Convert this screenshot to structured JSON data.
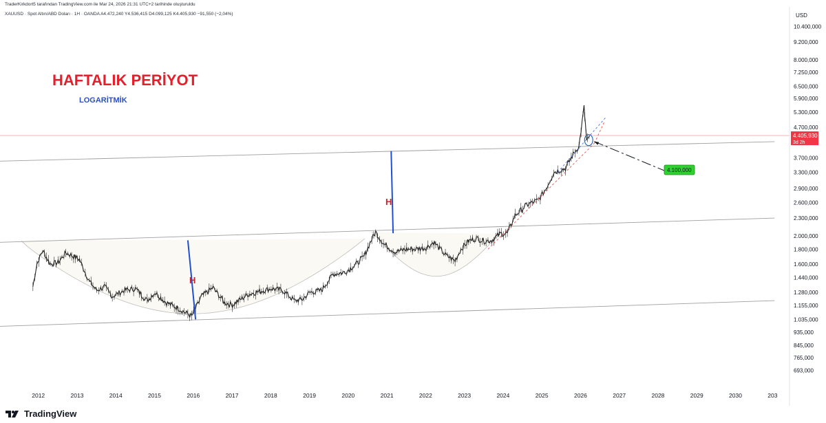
{
  "header": {
    "attribution": "TraderKirkdort5 tarafından TradingView.com ile Mar 24, 2026 21:31 UTC+2 tarihinde oluşturuldu",
    "symbol_line": "XAUUSD · Spot Altın/ABD Doları · 1H · OANDA   A4.472,240  Y4.536,415  D4.099,125  K4.405,930  −91,550 (−2,04%)"
  },
  "footer": {
    "brand": "TradingView"
  },
  "colors": {
    "title_red": "#e3202b",
    "subtitle_blue": "#2a4fbf",
    "measure_blue": "#1f4fd6",
    "badge_green": "#2fd12f",
    "price_red": "#f23645",
    "candle": "#222222"
  },
  "chart_data": {
    "type": "line",
    "title": "HAFTALIK PERİYOT",
    "subtitle": "LOGARİTMİK",
    "scale": "log",
    "y_unit": "USD",
    "x_ticks": [
      "2012",
      "2013",
      "2014",
      "2015",
      "2016",
      "2017",
      "2018",
      "2019",
      "2020",
      "2021",
      "2022",
      "2023",
      "2024",
      "2025",
      "2026",
      "2027",
      "2028",
      "2029",
      "2030",
      "203"
    ],
    "y_ticks": [
      "10.400,000",
      "9.200,000",
      "8.000,000",
      "7.250,000",
      "6.500,000",
      "5.900,000",
      "5.300,000",
      "4.700,000",
      "3.700,000",
      "3.300,000",
      "2.900,000",
      "2.600,000",
      "2.300,000",
      "2.000,000",
      "1.800,000",
      "1.600,000",
      "1.440,000",
      "1.280,000",
      "1.155,000",
      "1.035,000",
      "935,000",
      "845,000",
      "765,000",
      "693,000"
    ],
    "y_tick_values": [
      10400,
      9200,
      8000,
      7250,
      6500,
      5900,
      5300,
      4700,
      3700,
      3300,
      2900,
      2600,
      2300,
      2000,
      1800,
      1600,
      1440,
      1280,
      1155,
      1035,
      935,
      845,
      765,
      693
    ],
    "series": [
      {
        "x": [
          2011.85,
          2011.95,
          2012.1,
          2012.3,
          2012.5,
          2012.7,
          2012.9,
          2013.05,
          2013.3,
          2013.5,
          2013.7,
          2013.9,
          2014.2,
          2014.5,
          2014.8,
          2015.0,
          2015.3,
          2015.6,
          2015.95,
          2016.2,
          2016.5,
          2016.8,
          2017.0,
          2017.4,
          2017.7,
          2018.0,
          2018.3,
          2018.6,
          2018.8,
          2019.0,
          2019.3,
          2019.6,
          2019.9,
          2020.2,
          2020.4,
          2020.6,
          2020.7,
          2020.9,
          2021.2,
          2021.5,
          2021.7,
          2022.0,
          2022.2,
          2022.5,
          2022.75,
          2022.9,
          2023.1,
          2023.3,
          2023.5,
          2023.7,
          2023.9,
          2024.1,
          2024.3,
          2024.6,
          2024.9,
          2025.1,
          2025.3,
          2025.6,
          2025.8,
          2025.95,
          2026.08,
          2026.15,
          2026.22
        ],
        "y": [
          1340,
          1600,
          1780,
          1600,
          1620,
          1750,
          1700,
          1660,
          1400,
          1300,
          1340,
          1240,
          1300,
          1320,
          1200,
          1280,
          1180,
          1130,
          1060,
          1240,
          1330,
          1180,
          1160,
          1260,
          1290,
          1320,
          1300,
          1200,
          1210,
          1280,
          1300,
          1480,
          1500,
          1600,
          1700,
          1950,
          2060,
          1880,
          1760,
          1800,
          1800,
          1820,
          1900,
          1720,
          1640,
          1800,
          1920,
          1960,
          1920,
          1930,
          2030,
          2040,
          2350,
          2550,
          2650,
          2900,
          3300,
          3400,
          3800,
          4050,
          5500,
          4200,
          4405
        ]
      }
    ],
    "lower_channel": {
      "start": [
        2011.0,
        980
      ],
      "end": [
        2031.0,
        1200
      ]
    },
    "middle_channel": {
      "start": [
        2011.0,
        1900
      ],
      "end": [
        2031.0,
        2300
      ]
    },
    "upper_channel": {
      "start": [
        2011.0,
        3600
      ],
      "end": [
        2031.0,
        4200
      ]
    },
    "current_price_label": "4.405,930",
    "countdown_label": "3d 2h",
    "current_price": 4405.93,
    "target_label": "4.100,000",
    "target_value": 4100,
    "measure_labels": [
      "H",
      "H"
    ]
  }
}
